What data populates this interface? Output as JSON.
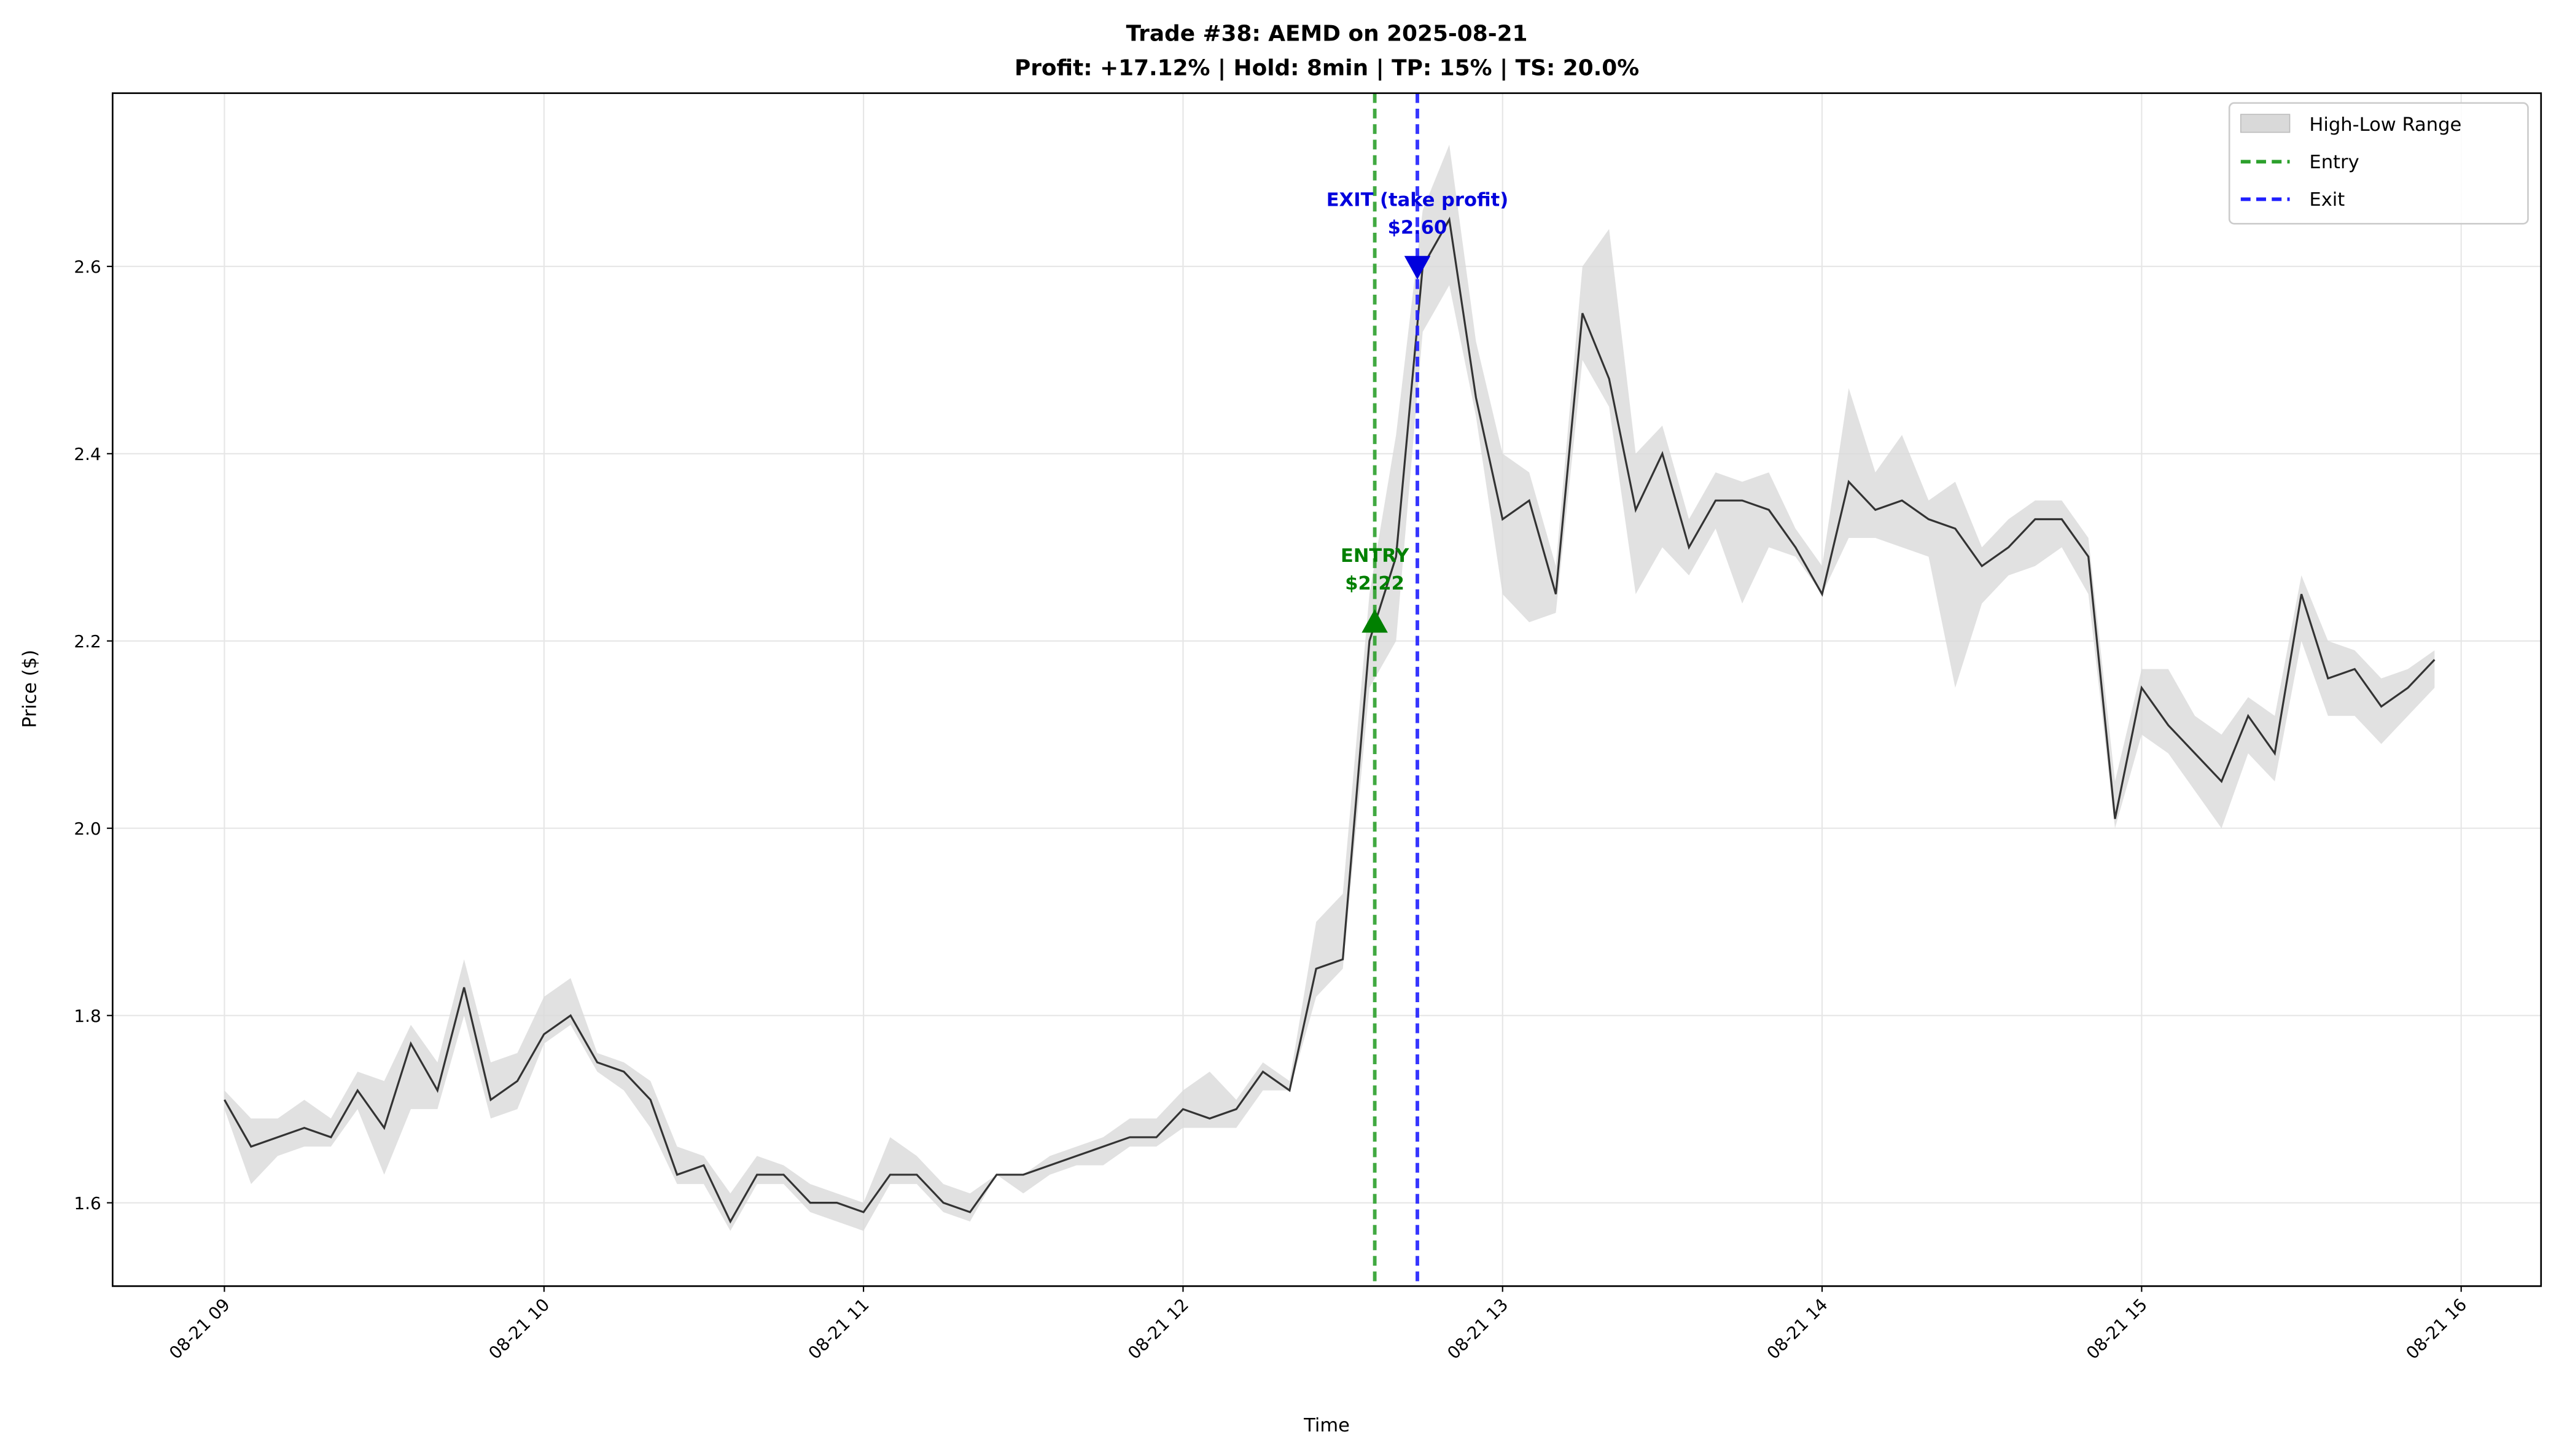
{
  "chart_data": {
    "type": "line",
    "title": "Trade #38: AEMD on 2025-08-21",
    "subtitle": "Profit: +17.12% | Hold: 8min | TP: 15% | TS: 20.0%",
    "x_label": "Time",
    "y_label": "Price ($)",
    "color": "#333333",
    "grid": true,
    "legend": "upper right",
    "xlim": [
      "08-21 08:39",
      "08-21 16:15"
    ],
    "xticks": [
      {
        "value": "08-21 09:00",
        "label": "08-21 09"
      },
      {
        "value": "08-21 10:00",
        "label": "08-21 10"
      },
      {
        "value": "08-21 11:00",
        "label": "08-21 11"
      },
      {
        "value": "08-21 12:00",
        "label": "08-21 12"
      },
      {
        "value": "08-21 13:00",
        "label": "08-21 13"
      },
      {
        "value": "08-21 14:00",
        "label": "08-21 14"
      },
      {
        "value": "08-21 15:00",
        "label": "08-21 15"
      },
      {
        "value": "08-21 16:00",
        "label": "08-21 16"
      }
    ],
    "ylim": [
      1.511,
      2.785
    ],
    "yticks": [
      1.6,
      1.8,
      {
        "value": 2,
        "label": "2.0"
      },
      2.2,
      2.4,
      2.6
    ],
    "x": [
      "08-21 09:00",
      "08-21 09:05",
      "08-21 09:10",
      "08-21 09:15",
      "08-21 09:20",
      "08-21 09:25",
      "08-21 09:30",
      "08-21 09:35",
      "08-21 09:40",
      "08-21 09:45",
      "08-21 09:50",
      "08-21 09:55",
      "08-21 10:00",
      "08-21 10:05",
      "08-21 10:10",
      "08-21 10:15",
      "08-21 10:20",
      "08-21 10:25",
      "08-21 10:30",
      "08-21 10:35",
      "08-21 10:40",
      "08-21 10:45",
      "08-21 10:50",
      "08-21 10:55",
      "08-21 11:00",
      "08-21 11:05",
      "08-21 11:10",
      "08-21 11:15",
      "08-21 11:20",
      "08-21 11:25",
      "08-21 11:30",
      "08-21 11:35",
      "08-21 11:40",
      "08-21 11:45",
      "08-21 11:50",
      "08-21 11:55",
      "08-21 12:00",
      "08-21 12:05",
      "08-21 12:10",
      "08-21 12:15",
      "08-21 12:20",
      "08-21 12:25",
      "08-21 12:30",
      "08-21 12:35",
      "08-21 12:40",
      "08-21 12:45",
      "08-21 12:50",
      "08-21 12:55",
      "08-21 13:00",
      "08-21 13:05",
      "08-21 13:10",
      "08-21 13:15",
      "08-21 13:20",
      "08-21 13:25",
      "08-21 13:30",
      "08-21 13:35",
      "08-21 13:40",
      "08-21 13:45",
      "08-21 13:50",
      "08-21 13:55",
      "08-21 14:00",
      "08-21 14:05",
      "08-21 14:10",
      "08-21 14:15",
      "08-21 14:20",
      "08-21 14:25",
      "08-21 14:30",
      "08-21 14:35",
      "08-21 14:40",
      "08-21 14:45",
      "08-21 14:50",
      "08-21 14:55",
      "08-21 15:00",
      "08-21 15:05",
      "08-21 15:10",
      "08-21 15:15",
      "08-21 15:20",
      "08-21 15:25",
      "08-21 15:30",
      "08-21 15:35",
      "08-21 15:40",
      "08-21 15:45",
      "08-21 15:50",
      "08-21 15:55"
    ],
    "values": [
      1.71,
      1.66,
      1.67,
      1.68,
      1.67,
      1.72,
      1.68,
      1.77,
      1.72,
      1.83,
      1.71,
      1.73,
      1.78,
      1.8,
      1.75,
      1.74,
      1.71,
      1.63,
      1.64,
      1.58,
      1.63,
      1.63,
      1.6,
      1.6,
      1.59,
      1.63,
      1.63,
      1.6,
      1.59,
      1.63,
      1.63,
      1.64,
      1.65,
      1.66,
      1.67,
      1.67,
      1.7,
      1.69,
      1.7,
      1.74,
      1.72,
      1.85,
      1.86,
      2.2,
      2.29,
      2.6,
      2.65,
      2.46,
      2.33,
      2.35,
      2.25,
      2.55,
      2.48,
      2.34,
      2.4,
      2.3,
      2.35,
      2.35,
      2.34,
      2.3,
      2.25,
      2.37,
      2.34,
      2.35,
      2.33,
      2.32,
      2.28,
      2.3,
      2.33,
      2.33,
      2.29,
      2.01,
      2.15,
      2.11,
      2.08,
      2.05,
      2.12,
      2.08,
      2.25,
      2.16,
      2.17,
      2.13,
      2.15,
      2.18
    ],
    "range": {
      "name": "High-Low Range",
      "color": "#d9d9d9",
      "high": [
        1.72,
        1.69,
        1.69,
        1.71,
        1.69,
        1.74,
        1.73,
        1.79,
        1.75,
        1.86,
        1.75,
        1.76,
        1.82,
        1.84,
        1.76,
        1.75,
        1.73,
        1.66,
        1.65,
        1.61,
        1.65,
        1.64,
        1.62,
        1.61,
        1.6,
        1.67,
        1.65,
        1.62,
        1.61,
        1.63,
        1.63,
        1.65,
        1.66,
        1.67,
        1.69,
        1.69,
        1.72,
        1.74,
        1.71,
        1.75,
        1.73,
        1.9,
        1.93,
        2.25,
        2.42,
        2.66,
        2.73,
        2.52,
        2.4,
        2.38,
        2.28,
        2.6,
        2.64,
        2.4,
        2.43,
        2.33,
        2.38,
        2.37,
        2.38,
        2.32,
        2.28,
        2.47,
        2.38,
        2.42,
        2.35,
        2.37,
        2.3,
        2.33,
        2.35,
        2.35,
        2.31,
        2.05,
        2.17,
        2.17,
        2.12,
        2.1,
        2.14,
        2.12,
        2.27,
        2.2,
        2.19,
        2.16,
        2.17,
        2.19
      ],
      "low": [
        1.7,
        1.62,
        1.65,
        1.66,
        1.66,
        1.7,
        1.63,
        1.7,
        1.7,
        1.8,
        1.69,
        1.7,
        1.77,
        1.79,
        1.74,
        1.72,
        1.68,
        1.62,
        1.62,
        1.57,
        1.62,
        1.62,
        1.59,
        1.58,
        1.57,
        1.62,
        1.62,
        1.59,
        1.58,
        1.63,
        1.61,
        1.63,
        1.64,
        1.64,
        1.66,
        1.66,
        1.68,
        1.68,
        1.68,
        1.72,
        1.72,
        1.82,
        1.85,
        2.15,
        2.2,
        2.53,
        2.58,
        2.44,
        2.25,
        2.22,
        2.23,
        2.5,
        2.45,
        2.25,
        2.3,
        2.27,
        2.32,
        2.24,
        2.3,
        2.29,
        2.25,
        2.31,
        2.31,
        2.3,
        2.29,
        2.15,
        2.24,
        2.27,
        2.28,
        2.3,
        2.25,
        2.0,
        2.1,
        2.08,
        2.04,
        2.0,
        2.08,
        2.05,
        2.2,
        2.12,
        2.12,
        2.09,
        2.12,
        2.15
      ]
    },
    "entry": {
      "name": "Entry",
      "color": "#2ca02c",
      "marker_color": "#008000",
      "x": "08-21 12:36",
      "price": 2.22,
      "label": "ENTRY",
      "price_label": "$2.22"
    },
    "exit": {
      "name": "Exit",
      "color": "#1f1fff",
      "marker_color": "#0000dd",
      "x": "08-21 12:44",
      "price": 2.6,
      "label": "EXIT (take profit)",
      "price_label": "$2.60"
    }
  }
}
